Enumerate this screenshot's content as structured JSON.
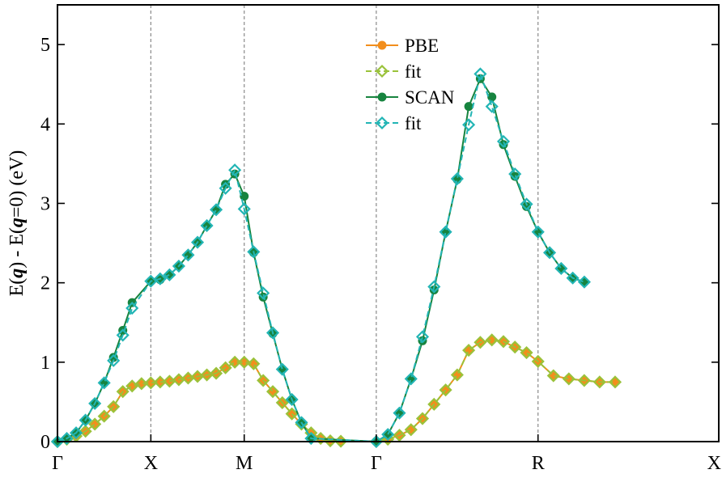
{
  "chart_data": {
    "type": "line",
    "ylabel_parts": [
      "E(",
      "q",
      ") - E(",
      "q",
      "=0) (eV)"
    ],
    "ylim": [
      0,
      5.5
    ],
    "yticks": [
      0,
      1,
      2,
      3,
      4,
      5
    ],
    "ytick_labels": [
      "0",
      "1",
      "2",
      "3",
      "4",
      "5"
    ],
    "xlim": [
      0,
      1
    ],
    "high_symmetry_points": [
      {
        "label": "Γ",
        "x": 0
      },
      {
        "label": "X",
        "x": 0.1412
      },
      {
        "label": "M",
        "x": 0.2824
      },
      {
        "label": "Γ",
        "x": 0.4821
      },
      {
        "label": "R",
        "x": 0.7267
      },
      {
        "label": "X",
        "x": 1.0
      }
    ],
    "grid": false,
    "legend_position": "top-center",
    "series": [
      {
        "name": "PBE",
        "style": "line-circle",
        "color": "#f28e1c",
        "points": [
          [
            0,
            0
          ],
          [
            0.0141,
            0.03
          ],
          [
            0.0282,
            0.07
          ],
          [
            0.0424,
            0.13
          ],
          [
            0.0565,
            0.22
          ],
          [
            0.0706,
            0.32
          ],
          [
            0.0847,
            0.44
          ],
          [
            0.0988,
            0.63
          ],
          [
            0.1129,
            0.7
          ],
          [
            0.1271,
            0.73
          ],
          [
            0.1412,
            0.74
          ],
          [
            0.1553,
            0.75
          ],
          [
            0.1694,
            0.76
          ],
          [
            0.1835,
            0.78
          ],
          [
            0.1976,
            0.8
          ],
          [
            0.2118,
            0.82
          ],
          [
            0.2259,
            0.84
          ],
          [
            0.24,
            0.86
          ],
          [
            0.2541,
            0.93
          ],
          [
            0.2682,
            1.0
          ],
          [
            0.2824,
            1.0
          ],
          [
            0.2966,
            0.98
          ],
          [
            0.3111,
            0.77
          ],
          [
            0.3256,
            0.63
          ],
          [
            0.34,
            0.49
          ],
          [
            0.3545,
            0.35
          ],
          [
            0.369,
            0.22
          ],
          [
            0.3835,
            0.11
          ],
          [
            0.398,
            0.04
          ],
          [
            0.4125,
            0.01
          ],
          [
            0.4285,
            0.005
          ],
          [
            0.4821,
            0
          ],
          [
            0.4996,
            0.03
          ],
          [
            0.5171,
            0.08
          ],
          [
            0.5346,
            0.15
          ],
          [
            0.552,
            0.29
          ],
          [
            0.5695,
            0.47
          ],
          [
            0.587,
            0.65
          ],
          [
            0.6045,
            0.84
          ],
          [
            0.6219,
            1.15
          ],
          [
            0.6394,
            1.25
          ],
          [
            0.6569,
            1.28
          ],
          [
            0.6744,
            1.26
          ],
          [
            0.6918,
            1.19
          ],
          [
            0.7093,
            1.12
          ],
          [
            0.7267,
            1.01
          ],
          [
            0.75,
            0.83
          ],
          [
            0.7733,
            0.79
          ],
          [
            0.7966,
            0.77
          ],
          [
            0.8199,
            0.75
          ],
          [
            0.8433,
            0.75
          ]
        ]
      },
      {
        "name": "fit",
        "style": "dash-diamond",
        "color": "#9ac23a",
        "points": [
          [
            0,
            0
          ],
          [
            0.0141,
            0.03
          ],
          [
            0.0282,
            0.07
          ],
          [
            0.0424,
            0.13
          ],
          [
            0.0565,
            0.22
          ],
          [
            0.0706,
            0.32
          ],
          [
            0.0847,
            0.44
          ],
          [
            0.0988,
            0.63
          ],
          [
            0.1129,
            0.7
          ],
          [
            0.1271,
            0.73
          ],
          [
            0.1412,
            0.74
          ],
          [
            0.1553,
            0.75
          ],
          [
            0.1694,
            0.76
          ],
          [
            0.1835,
            0.78
          ],
          [
            0.1976,
            0.8
          ],
          [
            0.2118,
            0.82
          ],
          [
            0.2259,
            0.84
          ],
          [
            0.24,
            0.86
          ],
          [
            0.2541,
            0.93
          ],
          [
            0.2682,
            1.0
          ],
          [
            0.2824,
            1.0
          ],
          [
            0.2966,
            0.98
          ],
          [
            0.3111,
            0.77
          ],
          [
            0.3256,
            0.63
          ],
          [
            0.34,
            0.49
          ],
          [
            0.3545,
            0.35
          ],
          [
            0.369,
            0.22
          ],
          [
            0.3835,
            0.11
          ],
          [
            0.398,
            0.04
          ],
          [
            0.4125,
            0.01
          ],
          [
            0.4285,
            0.005
          ],
          [
            0.4821,
            0
          ],
          [
            0.4996,
            0.03
          ],
          [
            0.5171,
            0.08
          ],
          [
            0.5346,
            0.15
          ],
          [
            0.552,
            0.29
          ],
          [
            0.5695,
            0.47
          ],
          [
            0.587,
            0.65
          ],
          [
            0.6045,
            0.84
          ],
          [
            0.6219,
            1.15
          ],
          [
            0.6394,
            1.25
          ],
          [
            0.6569,
            1.28
          ],
          [
            0.6744,
            1.26
          ],
          [
            0.6918,
            1.19
          ],
          [
            0.7093,
            1.12
          ],
          [
            0.7267,
            1.01
          ],
          [
            0.75,
            0.83
          ],
          [
            0.7733,
            0.79
          ],
          [
            0.7966,
            0.77
          ],
          [
            0.8199,
            0.75
          ],
          [
            0.8433,
            0.75
          ]
        ]
      },
      {
        "name": "SCAN",
        "style": "line-circle",
        "color": "#17843f",
        "points": [
          [
            0,
            0
          ],
          [
            0.0141,
            0.04
          ],
          [
            0.0282,
            0.11
          ],
          [
            0.0424,
            0.27
          ],
          [
            0.0565,
            0.48
          ],
          [
            0.0706,
            0.74
          ],
          [
            0.0847,
            1.06
          ],
          [
            0.0988,
            1.4
          ],
          [
            0.1129,
            1.75
          ],
          [
            0.1412,
            2.02
          ],
          [
            0.1553,
            2.04
          ],
          [
            0.1694,
            2.1
          ],
          [
            0.1835,
            2.21
          ],
          [
            0.1976,
            2.35
          ],
          [
            0.2118,
            2.51
          ],
          [
            0.2259,
            2.72
          ],
          [
            0.24,
            2.92
          ],
          [
            0.2541,
            3.24
          ],
          [
            0.2682,
            3.37
          ],
          [
            0.2824,
            3.09
          ],
          [
            0.2966,
            2.38
          ],
          [
            0.3111,
            1.82
          ],
          [
            0.3256,
            1.36
          ],
          [
            0.34,
            0.91
          ],
          [
            0.3545,
            0.53
          ],
          [
            0.369,
            0.24
          ],
          [
            0.3835,
            0.04
          ],
          [
            0.4821,
            0
          ],
          [
            0.4996,
            0.09
          ],
          [
            0.5171,
            0.36
          ],
          [
            0.5346,
            0.79
          ],
          [
            0.552,
            1.27
          ],
          [
            0.5695,
            1.91
          ],
          [
            0.587,
            2.64
          ],
          [
            0.6045,
            3.3
          ],
          [
            0.6219,
            4.22
          ],
          [
            0.6394,
            4.57
          ],
          [
            0.6569,
            4.34
          ],
          [
            0.6744,
            3.74
          ],
          [
            0.6918,
            3.34
          ],
          [
            0.7093,
            2.96
          ],
          [
            0.7267,
            2.64
          ],
          [
            0.7442,
            2.38
          ],
          [
            0.7617,
            2.18
          ],
          [
            0.7792,
            2.06
          ],
          [
            0.7967,
            2.01
          ]
        ]
      },
      {
        "name": "fit",
        "style": "dash-diamond",
        "color": "#22b5b5",
        "points": [
          [
            0,
            0
          ],
          [
            0.0141,
            0.04
          ],
          [
            0.0282,
            0.11
          ],
          [
            0.0424,
            0.27
          ],
          [
            0.0565,
            0.48
          ],
          [
            0.0706,
            0.74
          ],
          [
            0.0847,
            1.02
          ],
          [
            0.0988,
            1.34
          ],
          [
            0.1129,
            1.68
          ],
          [
            0.1412,
            2.02
          ],
          [
            0.1553,
            2.05
          ],
          [
            0.1694,
            2.1
          ],
          [
            0.1835,
            2.21
          ],
          [
            0.1976,
            2.35
          ],
          [
            0.2118,
            2.51
          ],
          [
            0.2259,
            2.72
          ],
          [
            0.24,
            2.92
          ],
          [
            0.2541,
            3.19
          ],
          [
            0.2682,
            3.42
          ],
          [
            0.2824,
            2.93
          ],
          [
            0.2966,
            2.39
          ],
          [
            0.3111,
            1.87
          ],
          [
            0.3256,
            1.37
          ],
          [
            0.34,
            0.91
          ],
          [
            0.3545,
            0.53
          ],
          [
            0.369,
            0.24
          ],
          [
            0.3835,
            0.04
          ],
          [
            0.4821,
            0
          ],
          [
            0.4996,
            0.09
          ],
          [
            0.5171,
            0.36
          ],
          [
            0.5346,
            0.79
          ],
          [
            0.552,
            1.32
          ],
          [
            0.5695,
            1.95
          ],
          [
            0.587,
            2.64
          ],
          [
            0.6045,
            3.31
          ],
          [
            0.6219,
            3.99
          ],
          [
            0.6394,
            4.63
          ],
          [
            0.6569,
            4.22
          ],
          [
            0.6744,
            3.78
          ],
          [
            0.6918,
            3.37
          ],
          [
            0.7093,
            2.99
          ],
          [
            0.7267,
            2.64
          ],
          [
            0.7442,
            2.38
          ],
          [
            0.7617,
            2.18
          ],
          [
            0.7792,
            2.06
          ],
          [
            0.7967,
            2.01
          ]
        ]
      }
    ]
  }
}
